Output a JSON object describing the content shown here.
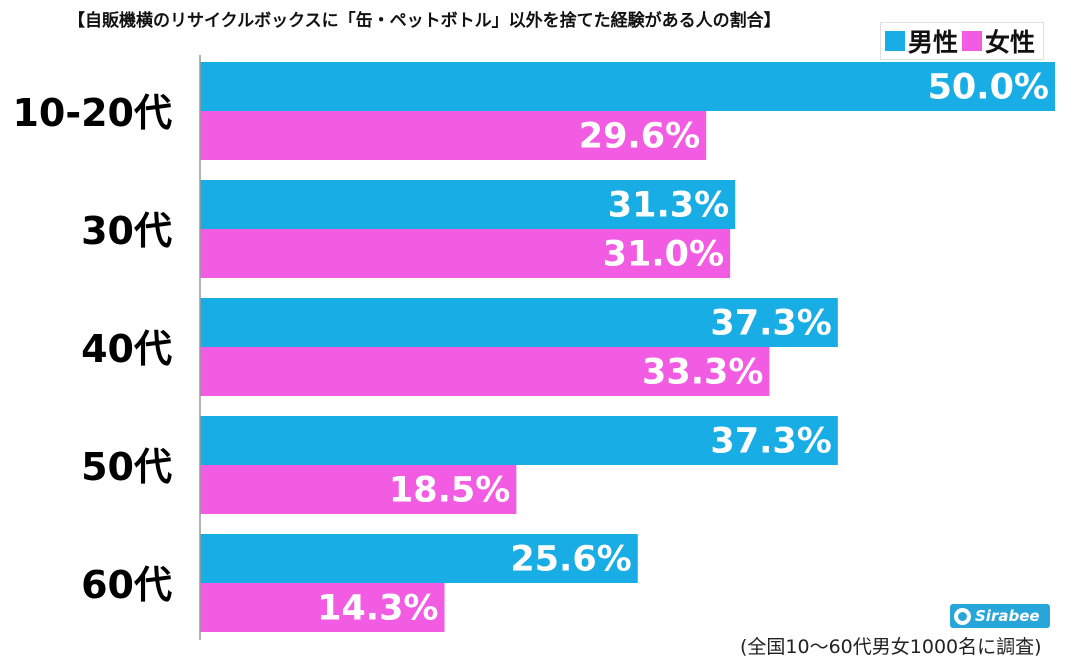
{
  "chart_data": {
    "type": "bar",
    "orientation": "horizontal",
    "title": "【自販機横のリサイクルボックスに「缶・ペットボトル」以外を捨てた経験がある人の割合】",
    "categories": [
      "10-20代",
      "30代",
      "40代",
      "50代",
      "60代"
    ],
    "series": [
      {
        "name": "男性",
        "color": "#19ade6",
        "values": [
          50.0,
          31.3,
          37.3,
          37.3,
          25.6
        ],
        "labels": [
          "50.0%",
          "31.3%",
          "37.3%",
          "37.3%",
          "25.6%"
        ]
      },
      {
        "name": "女性",
        "color": "#f25ce3",
        "values": [
          29.6,
          31.0,
          33.3,
          18.5,
          14.3
        ],
        "labels": [
          "29.6%",
          "31.0%",
          "33.3%",
          "18.5%",
          "14.3%"
        ]
      }
    ],
    "xlim": [
      0,
      50
    ],
    "legend_position": "top-right",
    "grid": false
  },
  "footnote": "(全国10～60代男女1000名に調査)",
  "logo_text": "Sirabee"
}
